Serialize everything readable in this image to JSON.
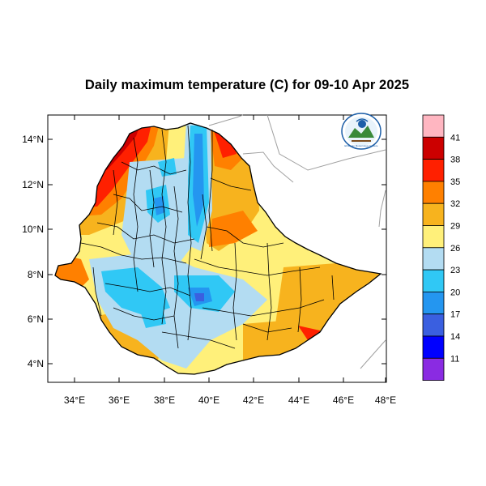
{
  "title": "Daily maximum temperature (C) for 09-10 Apr 2025",
  "x_axis": {
    "ticks": [
      "34°E",
      "36°E",
      "38°E",
      "40°E",
      "42°E",
      "44°E",
      "46°E",
      "48°E"
    ],
    "range": [
      33,
      48
    ]
  },
  "y_axis": {
    "ticks": [
      "4°N",
      "6°N",
      "8°N",
      "10°N",
      "12°N",
      "14°N"
    ],
    "range": [
      3.2,
      15
    ]
  },
  "colorbar": {
    "levels": [
      "41",
      "38",
      "35",
      "32",
      "29",
      "26",
      "23",
      "20",
      "17",
      "14",
      "11"
    ],
    "colors": [
      "#ffb6c1",
      "#cc0000",
      "#ff2000",
      "#ff8000",
      "#f7b31e",
      "#fff07a",
      "#b3dcf2",
      "#30c8f5",
      "#2496f0",
      "#3a5fe0",
      "#0000ff",
      "#8a2be2"
    ]
  },
  "logo": {
    "icon": "ethiopian-meteorology-institute-logo",
    "text": "Ethiopian Meteorology Institute"
  }
}
